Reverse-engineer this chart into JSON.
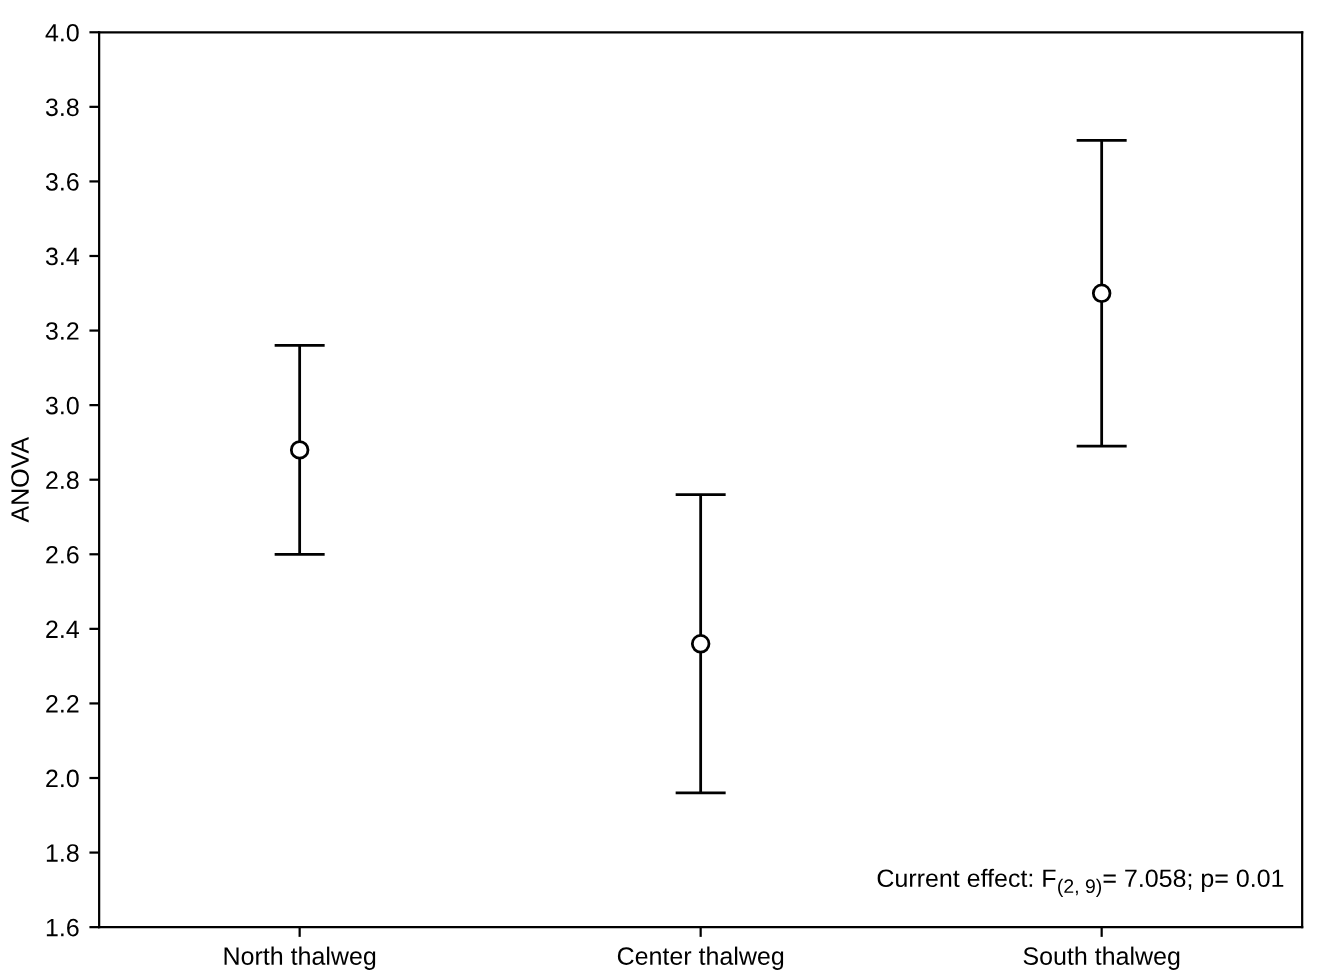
{
  "chart_data": {
    "type": "scatter",
    "ylabel": "ANOVA",
    "categories": [
      "North thalweg",
      "Center thalweg",
      "South thalweg"
    ],
    "values": [
      2.88,
      2.36,
      3.3
    ],
    "errors": [
      0.28,
      0.4,
      0.41
    ],
    "color": "#000000",
    "marker": "circle",
    "ylim": [
      1.6,
      4.0
    ],
    "yticks": [
      {
        "value": 1.6,
        "label": "1.6"
      },
      {
        "value": 1.8,
        "label": "1.8"
      },
      {
        "value": 2.0,
        "label": "2.0"
      },
      {
        "value": 2.2,
        "label": "2.2"
      },
      {
        "value": 2.4,
        "label": "2.4"
      },
      {
        "value": 2.6,
        "label": "2.6"
      },
      {
        "value": 2.8,
        "label": "2.8"
      },
      {
        "value": 3.0,
        "label": "3.0"
      },
      {
        "value": 3.2,
        "label": "3.2"
      },
      {
        "value": 3.4,
        "label": "3.4"
      },
      {
        "value": 3.6,
        "label": "3.6"
      },
      {
        "value": 3.8,
        "label": "3.8"
      },
      {
        "value": 4.0,
        "label": "4.0"
      }
    ],
    "grid": false,
    "annotations": [
      "Current effect: F$_{(2, 9)}$= 7.058; p= 0.01"
    ]
  }
}
